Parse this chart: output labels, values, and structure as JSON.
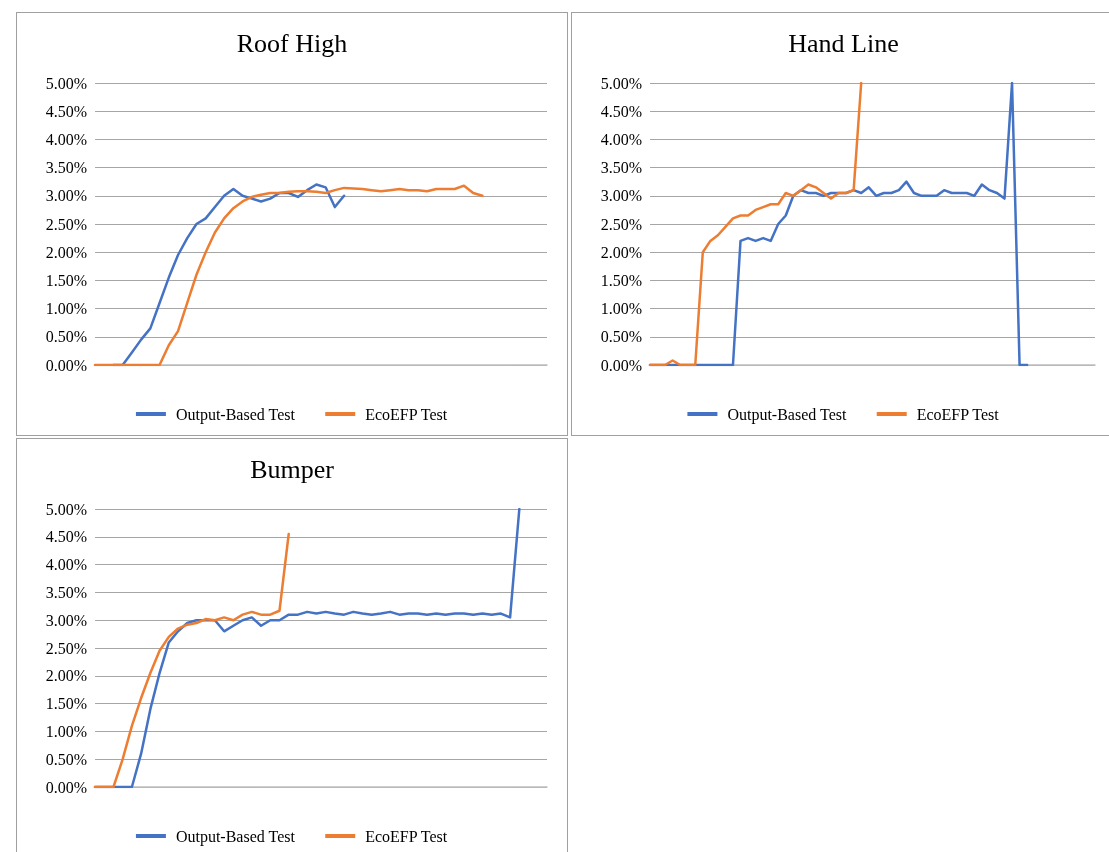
{
  "chart_data": [
    {
      "type": "line",
      "title": "Roof High",
      "grid": "y",
      "legend": "bottom",
      "marker": "none",
      "line_style": "solid",
      "categories": [
        null,
        null,
        null,
        null,
        null,
        null,
        null,
        null,
        null,
        null,
        null,
        null,
        null,
        null,
        null,
        null,
        null,
        null,
        null,
        null,
        null,
        null,
        null,
        null,
        null,
        null,
        null,
        null,
        null,
        null,
        null,
        null,
        null,
        null,
        null,
        null,
        null,
        null,
        null,
        null,
        null,
        null,
        null,
        null,
        null,
        null,
        null,
        null,
        null,
        null
      ],
      "ylim": [
        0,
        5
      ],
      "yticks": [
        {
          "value": 0,
          "label": "0.00%"
        },
        {
          "value": 0.5,
          "label": "0.50%"
        },
        {
          "value": 1,
          "label": "1.00%"
        },
        {
          "value": 1.5,
          "label": "1.50%"
        },
        {
          "value": 2,
          "label": "2.00%"
        },
        {
          "value": 2.5,
          "label": "2.50%"
        },
        {
          "value": 3,
          "label": "3.00%"
        },
        {
          "value": 3.5,
          "label": "3.50%"
        },
        {
          "value": 4,
          "label": "4.00%"
        },
        {
          "value": 4.5,
          "label": "4.50%"
        },
        {
          "value": 5,
          "label": "5.00%"
        }
      ],
      "series": [
        {
          "name": "Output-Based Test",
          "color": "#4472c4",
          "values": [
            null,
            null,
            0,
            0,
            0.22,
            0.45,
            0.65,
            1.1,
            1.55,
            1.95,
            2.25,
            2.5,
            2.6,
            2.8,
            3.0,
            3.12,
            3.0,
            2.95,
            2.9,
            2.95,
            3.05,
            3.05,
            2.98,
            3.1,
            3.2,
            3.15,
            2.8,
            3.0,
            null,
            null,
            null,
            null,
            null,
            null,
            null,
            null,
            null,
            null,
            null,
            null,
            null,
            null,
            null,
            null,
            null,
            null,
            null,
            null,
            null,
            null
          ]
        },
        {
          "name": "EcoEFP Test",
          "color": "#ed7d31",
          "values": [
            0,
            0,
            0,
            0,
            0,
            0,
            0,
            0,
            0.35,
            0.6,
            1.1,
            1.6,
            2.0,
            2.35,
            2.6,
            2.78,
            2.9,
            2.98,
            3.02,
            3.05,
            3.05,
            3.07,
            3.08,
            3.08,
            3.07,
            3.05,
            3.1,
            3.14,
            3.13,
            3.12,
            3.1,
            3.08,
            3.1,
            3.12,
            3.1,
            3.1,
            3.08,
            3.12,
            3.12,
            3.12,
            3.18,
            3.05,
            3.0,
            null,
            null,
            null,
            null,
            null,
            null,
            null
          ]
        }
      ]
    },
    {
      "type": "line",
      "title": "Hand Line",
      "grid": "y",
      "legend": "bottom",
      "marker": "none",
      "line_style": "solid",
      "categories": [
        null,
        null,
        null,
        null,
        null,
        null,
        null,
        null,
        null,
        null,
        null,
        null,
        null,
        null,
        null,
        null,
        null,
        null,
        null,
        null,
        null,
        null,
        null,
        null,
        null,
        null,
        null,
        null,
        null,
        null,
        null,
        null,
        null,
        null,
        null,
        null,
        null,
        null,
        null,
        null,
        null,
        null,
        null,
        null,
        null,
        null,
        null,
        null,
        null,
        null,
        null,
        null,
        null,
        null,
        null,
        null,
        null,
        null,
        null,
        null
      ],
      "ylim": [
        0,
        5
      ],
      "yticks": [
        {
          "value": 0,
          "label": "0.00%"
        },
        {
          "value": 0.5,
          "label": "0.50%"
        },
        {
          "value": 1,
          "label": "1.00%"
        },
        {
          "value": 1.5,
          "label": "1.50%"
        },
        {
          "value": 2,
          "label": "2.00%"
        },
        {
          "value": 2.5,
          "label": "2.50%"
        },
        {
          "value": 3,
          "label": "3.00%"
        },
        {
          "value": 3.5,
          "label": "3.50%"
        },
        {
          "value": 4,
          "label": "4.00%"
        },
        {
          "value": 4.5,
          "label": "4.50%"
        },
        {
          "value": 5,
          "label": "5.00%"
        }
      ],
      "series": [
        {
          "name": "Output-Based Test",
          "color": "#4472c4",
          "values": [
            0,
            0,
            0,
            0,
            0,
            0,
            0,
            0,
            0,
            0,
            0,
            0,
            2.2,
            2.25,
            2.2,
            2.25,
            2.2,
            2.5,
            2.65,
            3.0,
            3.1,
            3.05,
            3.05,
            3.0,
            3.05,
            3.05,
            3.05,
            3.1,
            3.05,
            3.15,
            3.0,
            3.05,
            3.05,
            3.1,
            3.25,
            3.05,
            3.0,
            3.0,
            3.0,
            3.1,
            3.05,
            3.05,
            3.05,
            3.0,
            3.2,
            3.1,
            3.05,
            2.95,
            5.0,
            0,
            0,
            null,
            null,
            null,
            null,
            null,
            null,
            null,
            null,
            null
          ]
        },
        {
          "name": "EcoEFP Test",
          "color": "#ed7d31",
          "values": [
            0,
            0,
            0,
            0.08,
            0,
            0,
            0,
            2.0,
            2.2,
            2.3,
            2.45,
            2.6,
            2.65,
            2.65,
            2.75,
            2.8,
            2.85,
            2.85,
            3.05,
            3.0,
            3.1,
            3.2,
            3.15,
            3.05,
            2.95,
            3.05,
            3.05,
            3.1,
            5.0,
            null,
            null,
            null,
            null,
            null,
            null,
            null,
            null,
            null,
            null,
            null,
            null,
            null,
            null,
            null,
            null,
            null,
            null,
            null,
            null,
            null,
            null,
            null,
            null,
            null,
            null,
            null,
            null,
            null,
            null,
            null
          ]
        }
      ]
    },
    {
      "type": "line",
      "title": "Bumper",
      "grid": "y",
      "legend": "bottom",
      "marker": "none",
      "line_style": "solid",
      "categories": [
        null,
        null,
        null,
        null,
        null,
        null,
        null,
        null,
        null,
        null,
        null,
        null,
        null,
        null,
        null,
        null,
        null,
        null,
        null,
        null,
        null,
        null,
        null,
        null,
        null,
        null,
        null,
        null,
        null,
        null,
        null,
        null,
        null,
        null,
        null,
        null,
        null,
        null,
        null,
        null,
        null,
        null,
        null,
        null,
        null,
        null,
        null,
        null,
        null,
        null
      ],
      "ylim": [
        0,
        5
      ],
      "yticks": [
        {
          "value": 0,
          "label": "0.00%"
        },
        {
          "value": 0.5,
          "label": "0.50%"
        },
        {
          "value": 1,
          "label": "1.00%"
        },
        {
          "value": 1.5,
          "label": "1.50%"
        },
        {
          "value": 2,
          "label": "2.00%"
        },
        {
          "value": 2.5,
          "label": "2.50%"
        },
        {
          "value": 3,
          "label": "3.00%"
        },
        {
          "value": 3.5,
          "label": "3.50%"
        },
        {
          "value": 4,
          "label": "4.00%"
        },
        {
          "value": 4.5,
          "label": "4.50%"
        },
        {
          "value": 5,
          "label": "5.00%"
        }
      ],
      "series": [
        {
          "name": "Output-Based Test",
          "color": "#4472c4",
          "values": [
            0,
            0,
            0,
            0,
            0,
            0.6,
            1.4,
            2.05,
            2.6,
            2.8,
            2.95,
            3.0,
            3.0,
            3.0,
            2.8,
            2.9,
            3.0,
            3.05,
            2.9,
            3.0,
            3.0,
            3.1,
            3.1,
            3.15,
            3.12,
            3.15,
            3.12,
            3.1,
            3.15,
            3.12,
            3.1,
            3.12,
            3.15,
            3.1,
            3.12,
            3.12,
            3.1,
            3.12,
            3.1,
            3.12,
            3.12,
            3.1,
            3.12,
            3.1,
            3.12,
            3.05,
            5.0,
            null,
            null,
            null
          ]
        },
        {
          "name": "EcoEFP Test",
          "color": "#ed7d31",
          "values": [
            0,
            0,
            0,
            0.5,
            1.1,
            1.6,
            2.05,
            2.45,
            2.7,
            2.85,
            2.92,
            2.95,
            3.02,
            3.0,
            3.05,
            3.0,
            3.1,
            3.15,
            3.1,
            3.1,
            3.17,
            4.55,
            null,
            null,
            null,
            null,
            null,
            null,
            null,
            null,
            null,
            null,
            null,
            null,
            null,
            null,
            null,
            null,
            null,
            null,
            null,
            null,
            null,
            null,
            null,
            null,
            null,
            null,
            null,
            null
          ]
        }
      ]
    }
  ]
}
